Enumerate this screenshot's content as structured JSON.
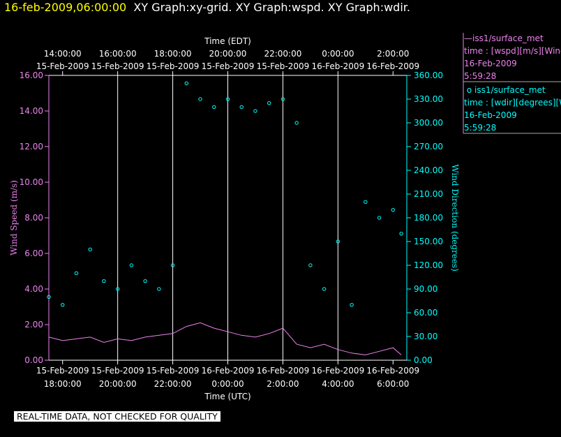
{
  "header": {
    "datetime": "16-feb-2009,06:00:00",
    "graphs": "XY Graph:xy-grid.  XY Graph:wspd.  XY Graph:wdir."
  },
  "legend": {
    "wspd": {
      "series": "iss1/surface_met",
      "var": "time : [wspd][m/s][Wind",
      "date": "16-Feb-2009",
      "time": "5:59:28",
      "color": "#ee82ee"
    },
    "wdir": {
      "series": "iss1/surface_met",
      "var": "time : [wdir][degrees][W",
      "date": "16-Feb-2009",
      "time": "5:59:28",
      "color": "#00ffff"
    }
  },
  "footer_note": "REAL-TIME DATA, NOT CHECKED FOR QUALITY",
  "chart_data": {
    "type": "line+scatter",
    "x_range_utc_hours": [
      17.5,
      30.5
    ],
    "top_axis": {
      "label": "Time (EDT)",
      "ticks": [
        {
          "t": "14:00:00",
          "d": "15-Feb-2009",
          "h": 18
        },
        {
          "t": "16:00:00",
          "d": "15-Feb-2009",
          "h": 20
        },
        {
          "t": "18:00:00",
          "d": "15-Feb-2009",
          "h": 22
        },
        {
          "t": "20:00:00",
          "d": "15-Feb-2009",
          "h": 24
        },
        {
          "t": "22:00:00",
          "d": "15-Feb-2009",
          "h": 26
        },
        {
          "t": "0:00:00",
          "d": "16-Feb-2009",
          "h": 28
        },
        {
          "t": "2:00:00",
          "d": "16-Feb-2009",
          "h": 30
        }
      ]
    },
    "bottom_axis": {
      "label": "Time (UTC)",
      "ticks": [
        {
          "t": "18:00:00",
          "d": "15-Feb-2009",
          "h": 18
        },
        {
          "t": "20:00:00",
          "d": "15-Feb-2009",
          "h": 20
        },
        {
          "t": "22:00:00",
          "d": "15-Feb-2009",
          "h": 22
        },
        {
          "t": "0:00:00",
          "d": "16-Feb-2009",
          "h": 24
        },
        {
          "t": "2:00:00",
          "d": "16-Feb-2009",
          "h": 26
        },
        {
          "t": "4:00:00",
          "d": "16-Feb-2009",
          "h": 28
        },
        {
          "t": "6:00:00",
          "d": "16-Feb-2009",
          "h": 30
        }
      ]
    },
    "left_axis": {
      "label": "Wind Speed (m/s)",
      "range": [
        0,
        16
      ],
      "ticks": [
        "0.00",
        "2.00",
        "4.00",
        "6.00",
        "8.00",
        "10.00",
        "12.00",
        "14.00",
        "16.00"
      ],
      "color": "#ee82ee"
    },
    "right_axis": {
      "label": "Wind Direction (degrees)",
      "range": [
        0,
        360
      ],
      "ticks": [
        "0.00",
        "30.00",
        "60.00",
        "90.00",
        "120.00",
        "150.00",
        "180.00",
        "210.00",
        "240.00",
        "270.00",
        "300.00",
        "330.00",
        "360.00"
      ],
      "color": "#00ffff"
    },
    "vertical_grid_hours": [
      20,
      22,
      24,
      26,
      28
    ],
    "wspd_series": {
      "name": "wspd",
      "x": [
        17.5,
        18.0,
        18.5,
        19.0,
        19.5,
        20.0,
        20.5,
        21.0,
        21.5,
        22.0,
        22.5,
        23.0,
        23.5,
        24.0,
        24.5,
        25.0,
        25.5,
        26.0,
        26.5,
        27.0,
        27.5,
        28.0,
        28.5,
        29.0,
        29.5,
        30.0,
        30.3
      ],
      "y": [
        1.3,
        1.1,
        1.2,
        1.3,
        1.0,
        1.2,
        1.1,
        1.3,
        1.4,
        1.5,
        1.9,
        2.1,
        1.8,
        1.6,
        1.4,
        1.3,
        1.5,
        1.8,
        0.9,
        0.7,
        0.9,
        0.6,
        0.4,
        0.3,
        0.5,
        0.7,
        0.3
      ]
    },
    "wdir_series": {
      "name": "wdir",
      "x": [
        17.5,
        18.0,
        18.5,
        19.0,
        19.5,
        20.0,
        20.5,
        21.0,
        21.5,
        22.0,
        22.5,
        23.0,
        23.5,
        24.0,
        24.5,
        25.0,
        25.5,
        26.0,
        26.5,
        27.0,
        27.5,
        28.0,
        28.5,
        29.0,
        29.5,
        30.0,
        30.3
      ],
      "y": [
        80,
        70,
        110,
        140,
        100,
        90,
        120,
        100,
        90,
        120,
        350,
        330,
        320,
        330,
        320,
        315,
        325,
        330,
        300,
        120,
        90,
        150,
        70,
        200,
        180,
        190,
        160
      ]
    }
  }
}
